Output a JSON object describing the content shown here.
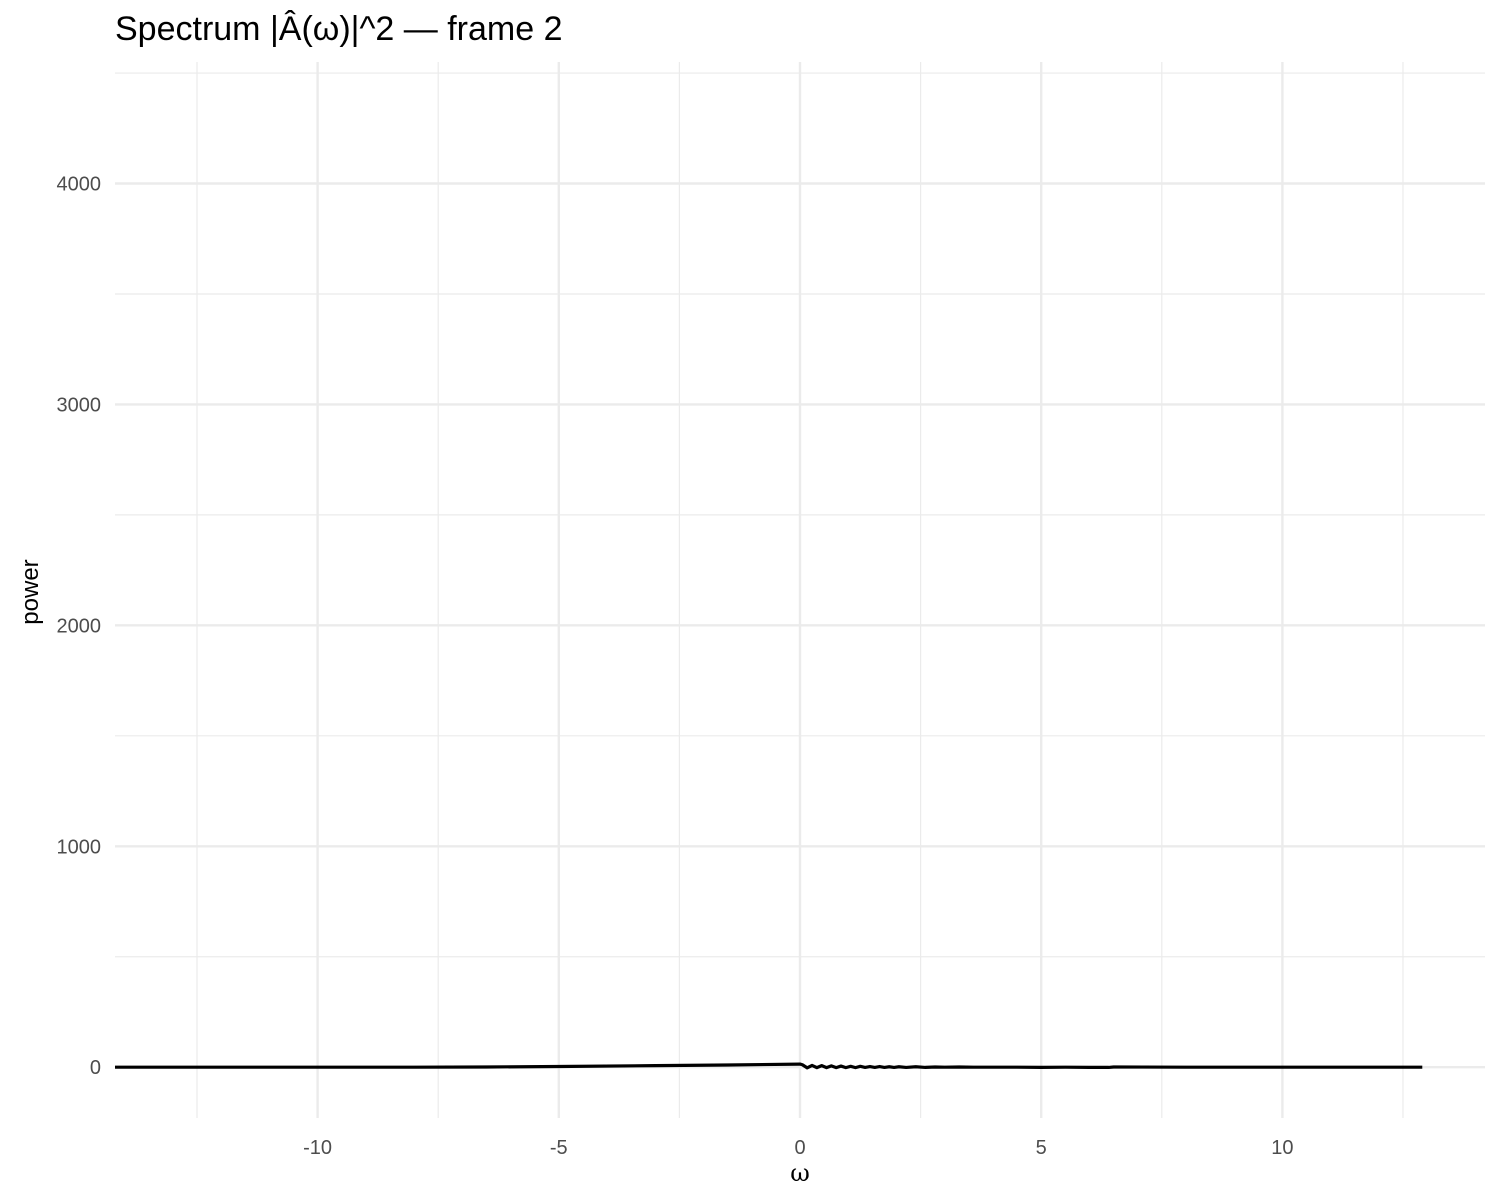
{
  "chart_data": {
    "type": "line",
    "title": "Spectrum |Â(ω)|^2 — frame 2",
    "xlabel": "ω",
    "ylabel": "power",
    "xlim": [
      -14.2,
      14.2
    ],
    "ylim": [
      -230,
      4550
    ],
    "x_ticks": [
      -10,
      -5,
      0,
      5,
      10
    ],
    "x_tick_labels": [
      "-10",
      "-5",
      "0",
      "5",
      "10"
    ],
    "y_ticks": [
      0,
      1000,
      2000,
      3000,
      4000
    ],
    "y_tick_labels": [
      "0",
      "1000",
      "2000",
      "3000",
      "4000"
    ],
    "x_minor_ticks": [
      -12.5,
      -7.5,
      -2.5,
      2.5,
      7.5,
      12.5
    ],
    "y_minor_ticks": [
      500,
      1500,
      2500,
      3500,
      4500
    ],
    "grid": true,
    "legend": "none",
    "line_color": "#000000",
    "series": [
      {
        "x": [
          -14.2,
          -12,
          -10,
          -8,
          -6.5,
          -5,
          -3,
          -1.5,
          0,
          0.05,
          0.15,
          0.25,
          0.35,
          0.45,
          0.55,
          0.65,
          0.75,
          0.85,
          0.95,
          1.05,
          1.15,
          1.25,
          1.35,
          1.45,
          1.55,
          1.65,
          1.75,
          1.85,
          1.95,
          2.05,
          2.2,
          2.4,
          2.6,
          2.8,
          3.0,
          3.3,
          3.6,
          4.0,
          4.5,
          5.0,
          5.5,
          6.0,
          6.4,
          6.5,
          8,
          10,
          12,
          12.9
        ],
        "y": [
          0,
          0,
          0,
          0,
          1,
          3,
          7,
          10,
          14,
          11,
          -3,
          8,
          -2,
          7,
          -2,
          6,
          -2,
          5,
          -2,
          4,
          -2,
          4,
          -1,
          3,
          -1,
          3,
          -1,
          2,
          -1,
          2,
          -1,
          2,
          -1,
          1,
          0,
          1,
          0,
          0,
          0,
          -1,
          0,
          -1,
          -1,
          1,
          0,
          0,
          0,
          0
        ]
      }
    ]
  }
}
